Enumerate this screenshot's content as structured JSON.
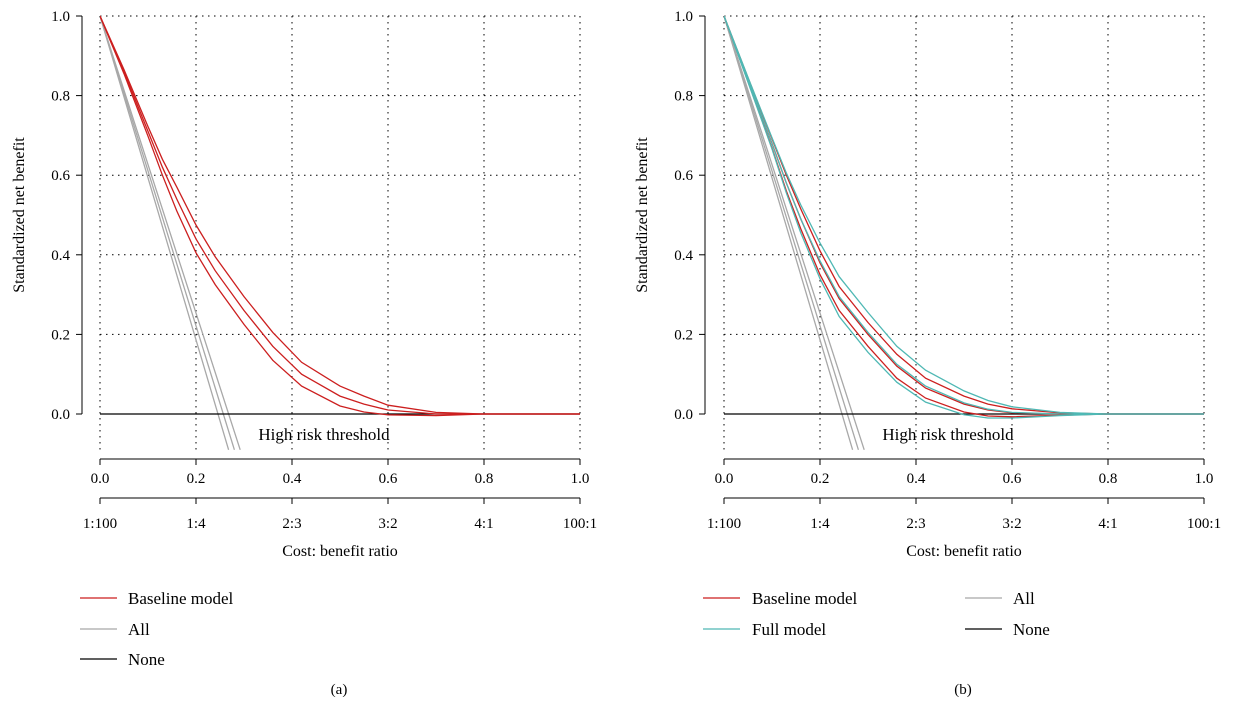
{
  "colors": {
    "baseline": "#cc1f1f",
    "full": "#4fb8b4",
    "all": "#a8a8a8",
    "none": "#000000"
  },
  "chart_data": [
    {
      "type": "line",
      "panel_label": "(a)",
      "ylabel": "Standardized net benefit",
      "xlabel": "Cost: benefit ratio",
      "xlim": [
        0,
        1
      ],
      "ylim": [
        -0.09,
        1.0
      ],
      "x_ticks": [
        "0.0",
        "0.2",
        "0.4",
        "0.6",
        "0.8",
        "1.0"
      ],
      "y_ticks": [
        "0.0",
        "0.2",
        "0.4",
        "0.6",
        "0.8",
        "1.0"
      ],
      "ratio_ticks": [
        "1:100",
        "1:4",
        "2:3",
        "3:2",
        "4:1",
        "100:1"
      ],
      "annotation": "High risk threshold",
      "grid": true,
      "legend_labels": {
        "baseline": "Baseline model",
        "all": "All",
        "none": "None"
      },
      "series": [
        {
          "name": "Baseline model",
          "color_key": "baseline",
          "band": true,
          "x": [
            0.0,
            0.05,
            0.1,
            0.13,
            0.16,
            0.2,
            0.24,
            0.3,
            0.36,
            0.42,
            0.5,
            0.55,
            0.6,
            0.7,
            0.8,
            1.0
          ],
          "y": [
            1.0,
            0.86,
            0.71,
            0.62,
            0.54,
            0.44,
            0.36,
            0.26,
            0.17,
            0.1,
            0.045,
            0.025,
            0.01,
            0.0,
            0.0,
            0.0
          ],
          "spread": [
            0,
            0.005,
            0.012,
            0.02,
            0.03,
            0.035,
            0.035,
            0.035,
            0.035,
            0.03,
            0.025,
            0.02,
            0.012,
            0.004,
            0,
            0
          ]
        },
        {
          "name": "All",
          "color_key": "all",
          "band": true,
          "x": [
            0.0,
            0.28
          ],
          "y": [
            1.0,
            -0.09
          ],
          "spread": [
            0,
            0.012
          ]
        },
        {
          "name": "None",
          "color_key": "none",
          "band": false,
          "x": [
            0.0,
            1.0
          ],
          "y": [
            0.0,
            0.0
          ]
        }
      ]
    },
    {
      "type": "line",
      "panel_label": "(b)",
      "ylabel": "Standardized net benefit",
      "xlabel": "Cost: benefit ratio",
      "xlim": [
        0,
        1
      ],
      "ylim": [
        -0.09,
        1.0
      ],
      "x_ticks": [
        "0.0",
        "0.2",
        "0.4",
        "0.6",
        "0.8",
        "1.0"
      ],
      "y_ticks": [
        "0.0",
        "0.2",
        "0.4",
        "0.6",
        "0.8",
        "1.0"
      ],
      "ratio_ticks": [
        "1:100",
        "1:4",
        "2:3",
        "3:2",
        "4:1",
        "100:1"
      ],
      "annotation": "High risk threshold",
      "grid": true,
      "legend_labels": {
        "baseline": "Baseline model",
        "full": "Full model",
        "all": "All",
        "none": "None"
      },
      "series": [
        {
          "name": "Baseline model",
          "color_key": "baseline",
          "band": true,
          "x": [
            0.0,
            0.05,
            0.1,
            0.13,
            0.16,
            0.2,
            0.24,
            0.3,
            0.36,
            0.42,
            0.5,
            0.55,
            0.6,
            0.7,
            0.8,
            1.0
          ],
          "y": [
            1.0,
            0.84,
            0.68,
            0.58,
            0.49,
            0.38,
            0.29,
            0.2,
            0.12,
            0.065,
            0.025,
            0.01,
            0.003,
            0.0,
            0.0,
            0.0
          ],
          "spread": [
            0,
            0.005,
            0.012,
            0.02,
            0.025,
            0.03,
            0.03,
            0.03,
            0.03,
            0.025,
            0.02,
            0.015,
            0.01,
            0.003,
            0,
            0
          ]
        },
        {
          "name": "Full model",
          "color_key": "full",
          "band": true,
          "x": [
            0.0,
            0.05,
            0.1,
            0.13,
            0.16,
            0.2,
            0.24,
            0.3,
            0.36,
            0.42,
            0.5,
            0.55,
            0.6,
            0.7,
            0.8,
            1.0
          ],
          "y": [
            1.0,
            0.84,
            0.68,
            0.58,
            0.49,
            0.385,
            0.295,
            0.205,
            0.125,
            0.07,
            0.028,
            0.012,
            0.004,
            0.0,
            0.0,
            0.0
          ],
          "spread": [
            0,
            0.006,
            0.014,
            0.025,
            0.035,
            0.045,
            0.05,
            0.05,
            0.045,
            0.04,
            0.03,
            0.022,
            0.014,
            0.004,
            0,
            0
          ]
        },
        {
          "name": "All",
          "color_key": "all",
          "band": true,
          "x": [
            0.0,
            0.28
          ],
          "y": [
            1.0,
            -0.09
          ],
          "spread": [
            0,
            0.012
          ]
        },
        {
          "name": "None",
          "color_key": "none",
          "band": false,
          "x": [
            0.0,
            1.0
          ],
          "y": [
            0.0,
            0.0
          ]
        }
      ]
    }
  ]
}
